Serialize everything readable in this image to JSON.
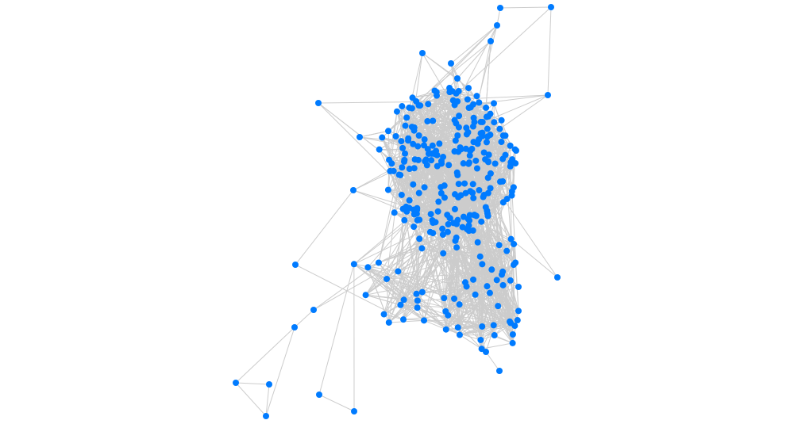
{
  "diagram": {
    "type": "network-graph",
    "node_color": "#007bff",
    "edge_color": "#cccccc",
    "background": "#ffffff"
  }
}
